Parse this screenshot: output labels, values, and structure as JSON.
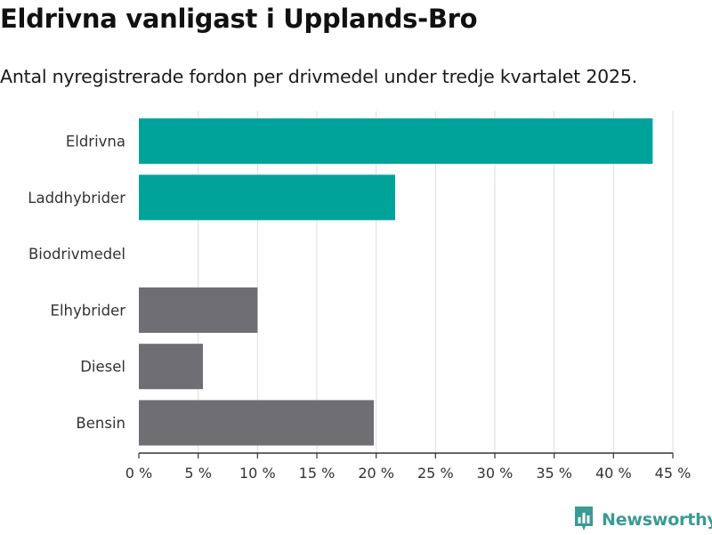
{
  "header": {
    "title": "Eldrivna vanligast i Upplands-Bro",
    "subtitle": "Antal nyregistrerade fordon per drivmedel under tredje kvartalet 2025."
  },
  "chart_data": {
    "type": "bar",
    "orientation": "horizontal",
    "categories": [
      "Eldrivna",
      "Laddhybrider",
      "Biodrivmedel",
      "Elhybrider",
      "Diesel",
      "Bensin"
    ],
    "values": [
      43.3,
      21.6,
      0,
      10.0,
      5.4,
      19.8
    ],
    "colors": [
      "#00a39a",
      "#00a39a",
      "#00a39a",
      "#6e6e73",
      "#6e6e73",
      "#6e6e73"
    ],
    "xlim": [
      0,
      45
    ],
    "xticks": [
      0,
      5,
      10,
      15,
      20,
      25,
      30,
      35,
      40,
      45
    ],
    "tick_suffix": " %",
    "grid": true,
    "xlabel": "",
    "ylabel": ""
  },
  "branding": {
    "logo_text": "Newsworthy",
    "logo_icon": "newsworthy-chart-icon",
    "logo_color": "#3a9a94"
  }
}
